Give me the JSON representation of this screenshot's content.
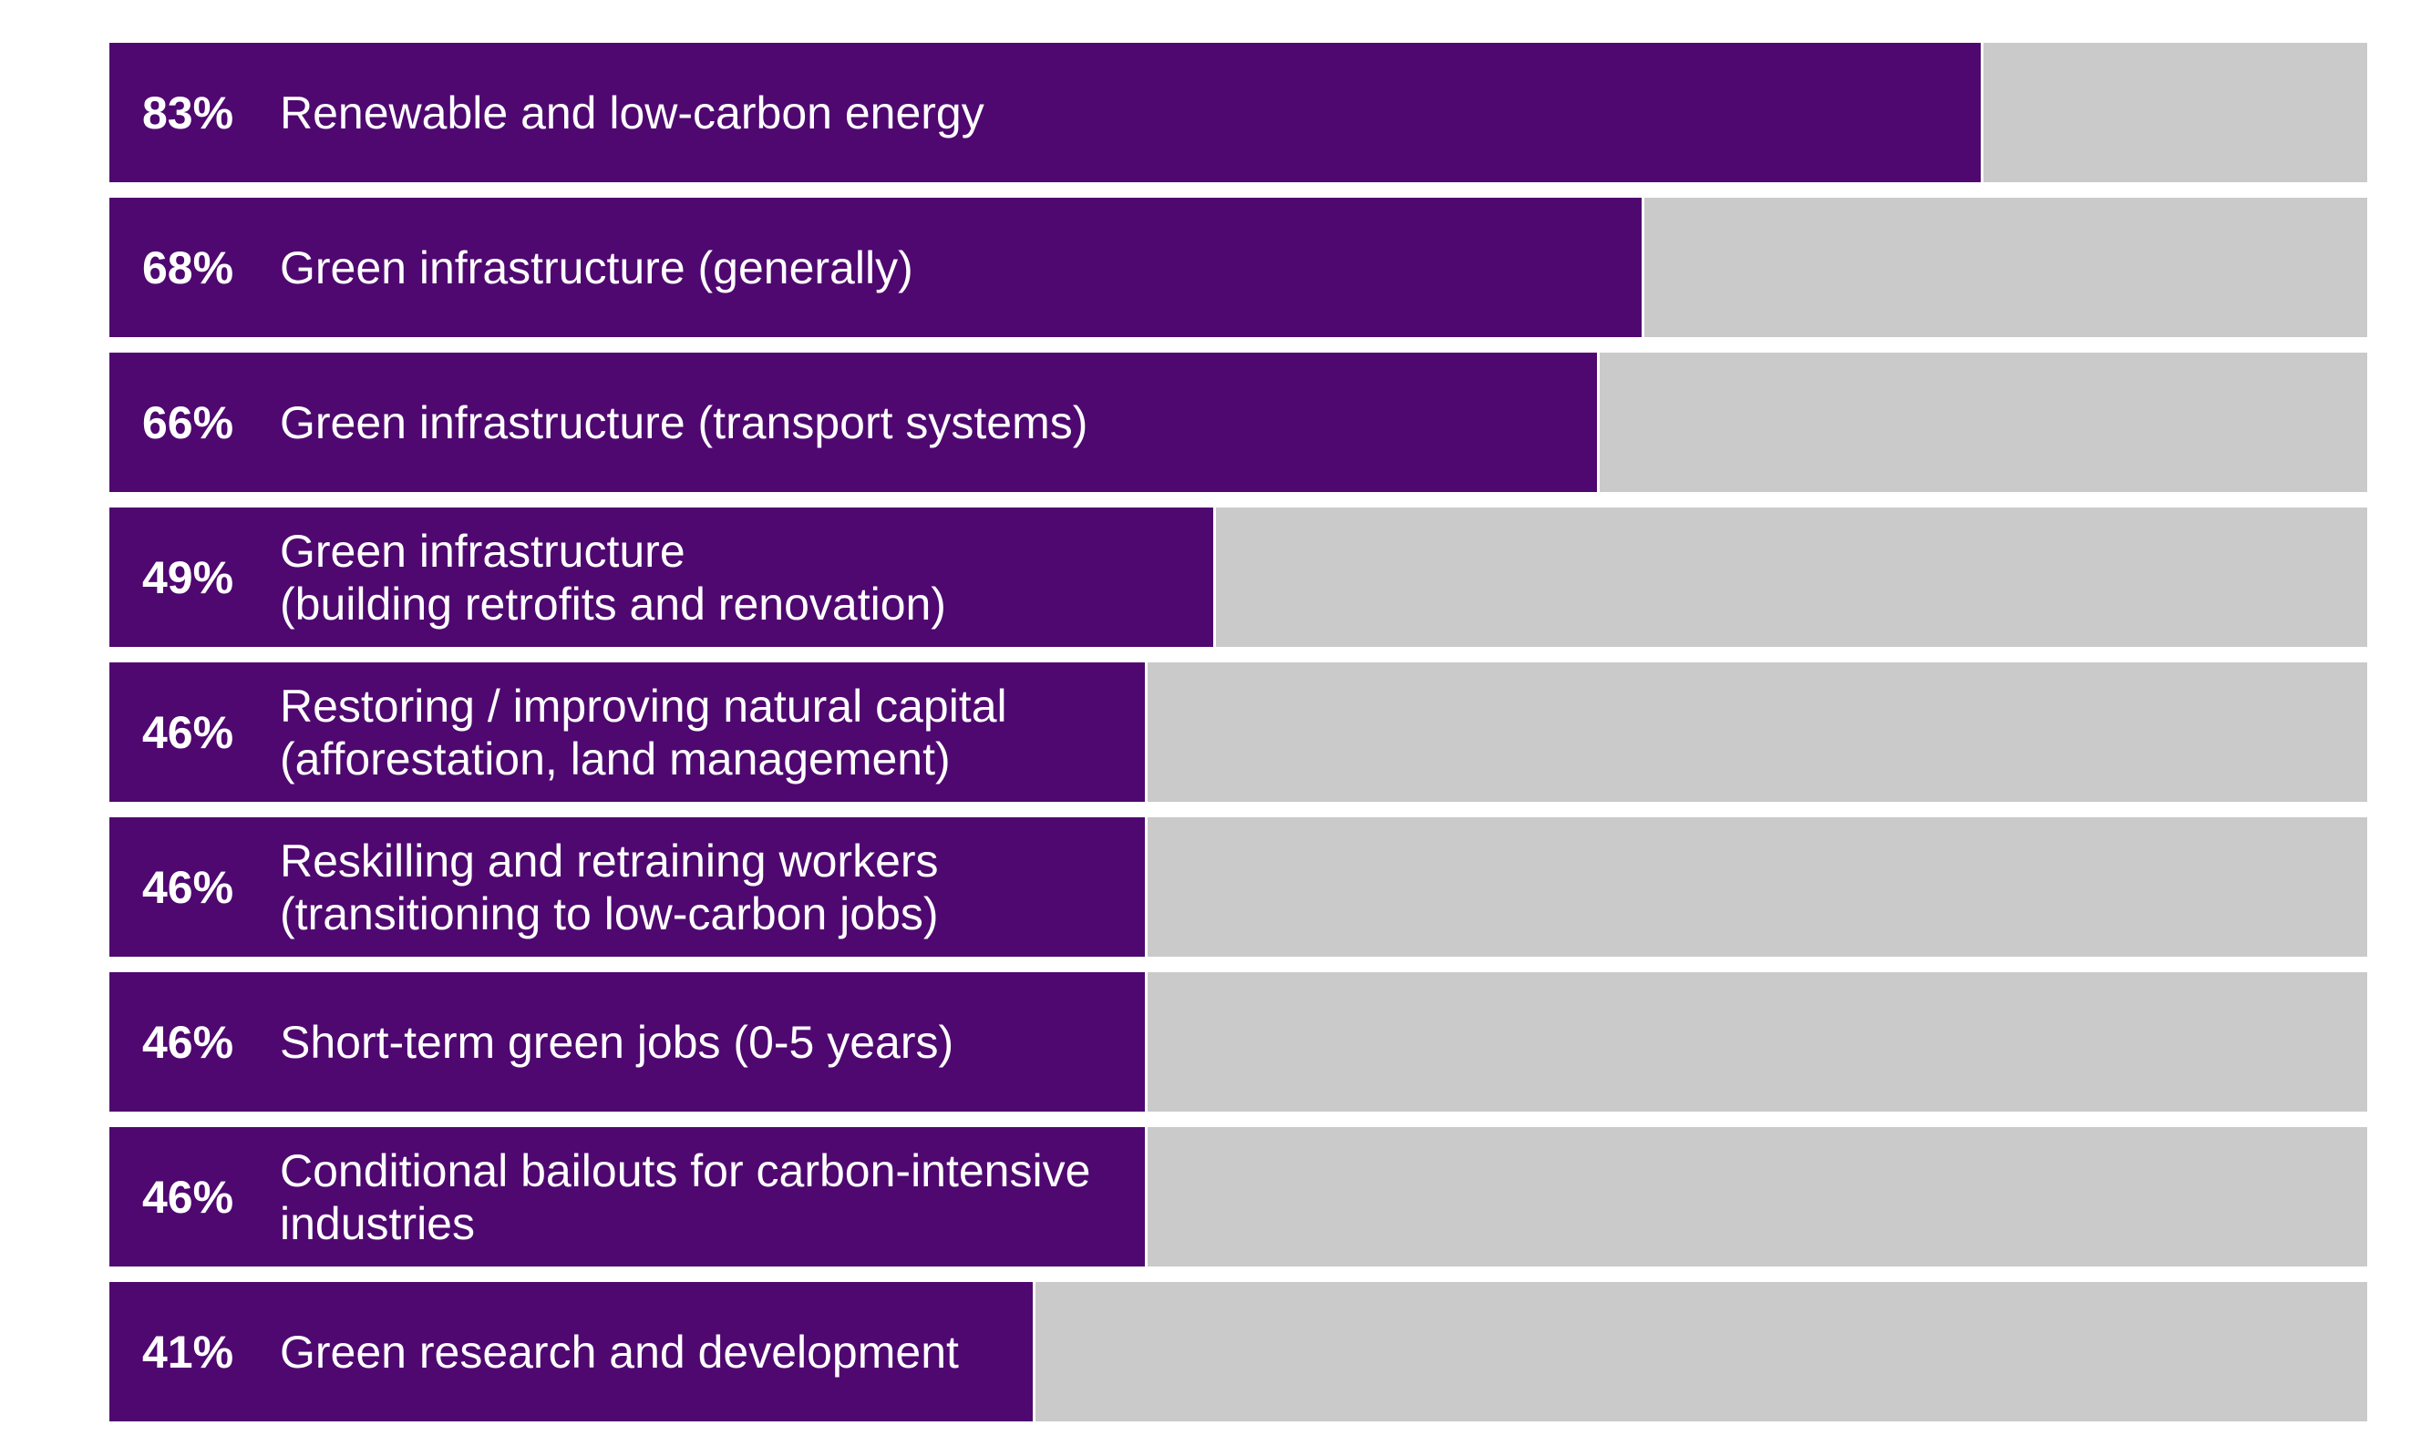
{
  "chart_data": {
    "type": "bar",
    "orientation": "horizontal",
    "xlim": [
      0,
      100
    ],
    "unit": "%",
    "colors": {
      "bar": "#4f0870",
      "track": "#cacaca",
      "text": "#ffffff"
    },
    "bars": [
      {
        "label": "Renewable and low-carbon energy",
        "value": 83,
        "value_label": "83%"
      },
      {
        "label": "Green infrastructure (generally)",
        "value": 68,
        "value_label": "68%"
      },
      {
        "label": "Green infrastructure (transport systems)",
        "value": 66,
        "value_label": "66%"
      },
      {
        "label": "Green infrastructure\n(building retrofits and renovation)",
        "value": 49,
        "value_label": "49%"
      },
      {
        "label": "Restoring / improving natural capital\n(afforestation, land management)",
        "value": 46,
        "value_label": "46%"
      },
      {
        "label": "Reskilling and retraining workers\n(transitioning to low-carbon jobs)",
        "value": 46,
        "value_label": "46%"
      },
      {
        "label": "Short-term green jobs (0-5 years)",
        "value": 46,
        "value_label": "46%"
      },
      {
        "label": "Conditional bailouts for carbon-intensive\nindustries",
        "value": 46,
        "value_label": "46%"
      },
      {
        "label": "Green research and development",
        "value": 41,
        "value_label": "41%"
      }
    ]
  }
}
